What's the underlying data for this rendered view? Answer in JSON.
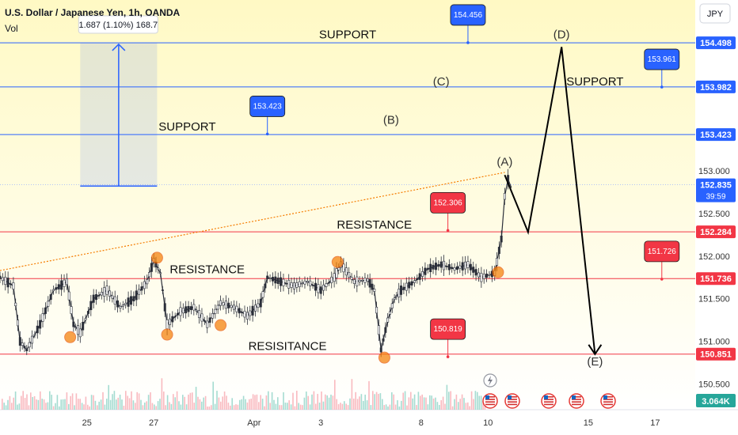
{
  "header": {
    "title": "U.S. Dollar / Japanese Yen, 1h, OANDA",
    "volume_label": "Vol",
    "currency_button": "JPY"
  },
  "measure": {
    "label": "1.687 (1.10%) 168.7"
  },
  "colors": {
    "up": "#089981",
    "down": "#f23645",
    "support_line": "#2962ff",
    "resistance_line": "#f23645",
    "callout_blue": "#2962ff",
    "callout_red": "#f23645",
    "highlight_dot": "#f57c00",
    "trendline": "#f57c00"
  },
  "chart_data": {
    "type": "line",
    "ylim": [
      150.2,
      155.0
    ],
    "y_ticks": [
      "153.000",
      "152.500",
      "152.000",
      "151.500",
      "151.000",
      "150.500"
    ],
    "x_labels": [
      {
        "label": "25",
        "t": 13
      },
      {
        "label": "27",
        "t": 23
      },
      {
        "label": "Apr",
        "t": 38
      },
      {
        "label": "3",
        "t": 48
      },
      {
        "label": "8",
        "t": 63
      },
      {
        "label": "10",
        "t": 73
      },
      {
        "label": "15",
        "t": 88
      },
      {
        "label": "17",
        "t": 98
      }
    ],
    "price_series": {
      "t": [
        0,
        2,
        3,
        4,
        6,
        8,
        10,
        11,
        12,
        14,
        16,
        18,
        20,
        22,
        23,
        24,
        25,
        27,
        29,
        31,
        33,
        35,
        37,
        39,
        40,
        42,
        44,
        46,
        48,
        50,
        51,
        53,
        55,
        56,
        57,
        58,
        59,
        60,
        62,
        64,
        66,
        68,
        70,
        72,
        74,
        75,
        75.5,
        76,
        76.5
      ],
      "close": [
        151.75,
        151.65,
        151.0,
        150.9,
        151.2,
        151.6,
        151.7,
        151.2,
        151.1,
        151.5,
        151.6,
        151.4,
        151.5,
        151.7,
        151.95,
        151.8,
        151.2,
        151.35,
        151.4,
        151.2,
        151.45,
        151.4,
        151.3,
        151.45,
        151.75,
        151.7,
        151.65,
        151.7,
        151.6,
        151.75,
        151.9,
        151.7,
        151.72,
        151.6,
        150.9,
        151.25,
        151.5,
        151.6,
        151.7,
        151.85,
        151.9,
        151.85,
        151.9,
        151.75,
        151.8,
        152.2,
        152.7,
        152.9,
        152.8
      ]
    },
    "levels": [
      {
        "name": "support",
        "price": 154.498,
        "tag": "154.498"
      },
      {
        "name": "support",
        "price": 153.982,
        "tag": "153.982"
      },
      {
        "name": "support",
        "price": 153.423,
        "tag": "153.423"
      },
      {
        "name": "current",
        "price": 152.835,
        "tag": "152.835",
        "countdown": "39:59"
      },
      {
        "name": "resistance",
        "price": 152.284,
        "tag": "152.284"
      },
      {
        "name": "resistance",
        "price": 151.736,
        "tag": "151.736"
      },
      {
        "name": "resistance",
        "price": 150.851,
        "tag": "150.851"
      }
    ],
    "zone_labels": [
      {
        "text": "SUPPORT",
        "t": 52,
        "price": 154.55
      },
      {
        "text": "SUPPORT",
        "t": 89,
        "price": 154.0
      },
      {
        "text": "SUPPORT",
        "t": 28,
        "price": 153.47
      },
      {
        "text": "RESISTANCE",
        "t": 56,
        "price": 152.32
      },
      {
        "text": "RESISTANCE",
        "t": 31,
        "price": 151.8
      },
      {
        "text": "RESISITANCE",
        "t": 43,
        "price": 150.9
      }
    ],
    "callouts": [
      {
        "value": "154.456",
        "t": 70,
        "price": 154.5,
        "color": "blue",
        "box_above": true
      },
      {
        "value": "153.961",
        "t": 99,
        "price": 153.98,
        "color": "blue",
        "box_above": true
      },
      {
        "value": "153.423",
        "t": 40,
        "price": 153.43,
        "color": "blue",
        "box_above": true
      },
      {
        "value": "152.306",
        "t": 67,
        "price": 152.3,
        "color": "red",
        "box_above": true
      },
      {
        "value": "151.726",
        "t": 99,
        "price": 151.73,
        "color": "red",
        "box_above": true
      },
      {
        "value": "150.819",
        "t": 67,
        "price": 150.82,
        "color": "red",
        "box_above": true
      }
    ],
    "wave_path": [
      {
        "label": "",
        "t": 75.5,
        "price": 152.95
      },
      {
        "label": "",
        "t": 79,
        "price": 152.28
      },
      {
        "label": "(D)",
        "t": 84,
        "price": 154.45
      },
      {
        "label": "(E)",
        "t": 89,
        "price": 150.85
      }
    ],
    "wave_labels": [
      {
        "text": "(A)",
        "t": 75.5,
        "price": 153.06
      },
      {
        "text": "(B)",
        "t": 58.5,
        "price": 153.55
      },
      {
        "text": "(C)",
        "t": 66,
        "price": 154.0
      },
      {
        "text": "(D)",
        "t": 84,
        "price": 154.55
      },
      {
        "text": "(E)",
        "t": 89,
        "price": 150.72
      }
    ],
    "highlight_points": [
      {
        "t": 10.5,
        "price": 151.05
      },
      {
        "t": 23.5,
        "price": 151.98
      },
      {
        "t": 25,
        "price": 151.08
      },
      {
        "t": 33,
        "price": 151.19
      },
      {
        "t": 50.5,
        "price": 151.93
      },
      {
        "t": 57.5,
        "price": 150.81
      },
      {
        "t": 74.5,
        "price": 151.81
      }
    ],
    "trendline": {
      "t1": 0,
      "p1": 151.83,
      "t2": 75.5,
      "p2": 152.98
    },
    "measure_box": {
      "t1": 12,
      "t2": 23.5,
      "p1": 152.82,
      "p2": 154.5
    }
  },
  "volume_badge": "3.064K",
  "event_markers": [
    "flash-event",
    "us-flag-event",
    "us-flag-event",
    "us-flag-event",
    "us-flag-event",
    "us-flag-event"
  ]
}
